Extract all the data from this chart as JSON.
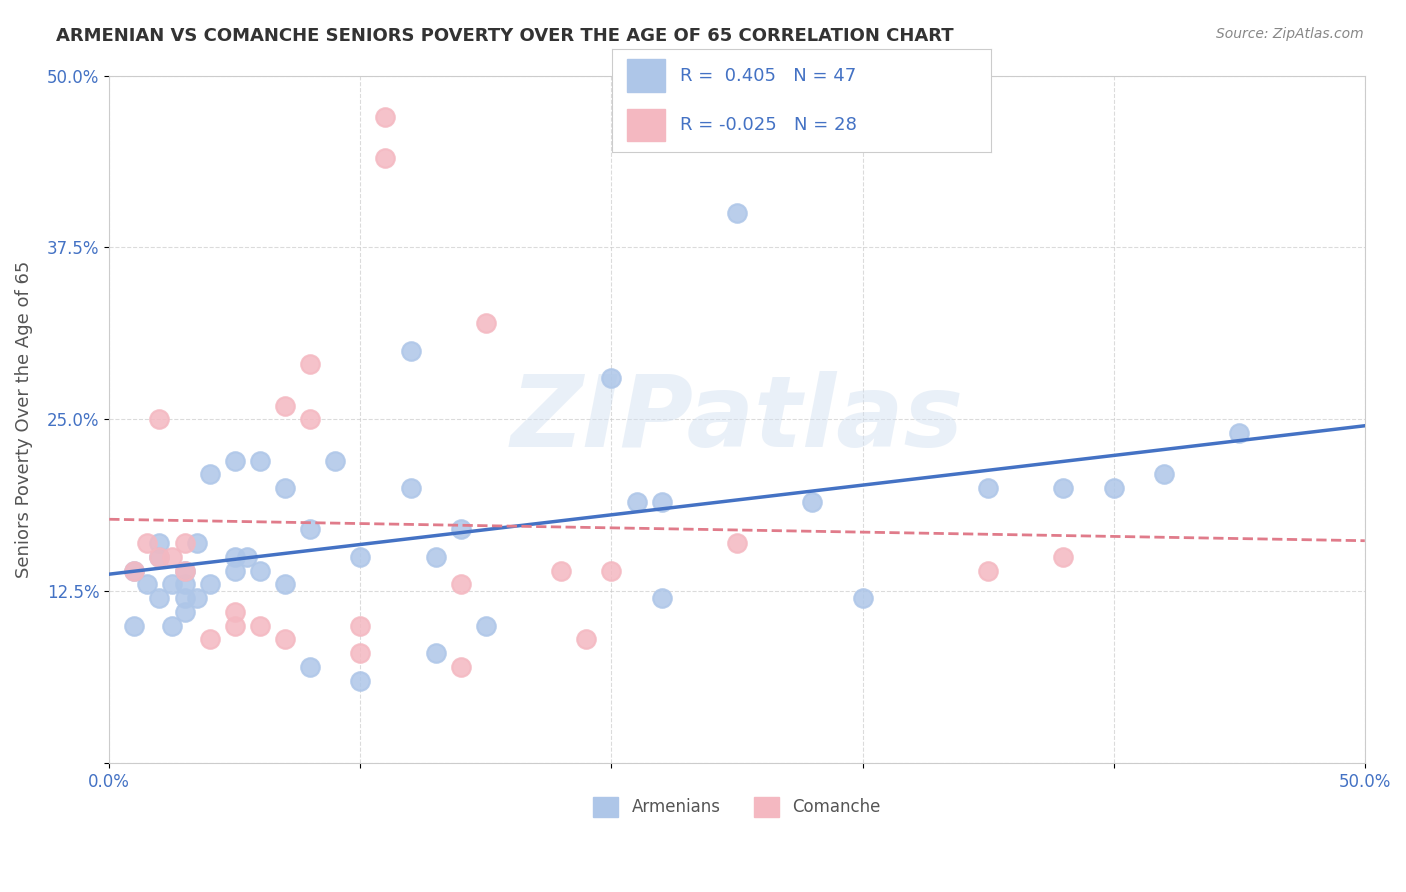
{
  "title": "ARMENIAN VS COMANCHE SENIORS POVERTY OVER THE AGE OF 65 CORRELATION CHART",
  "source": "Source: ZipAtlas.com",
  "ylabel": "Seniors Poverty Over the Age of 65",
  "xlabel": "",
  "xlim": [
    0.0,
    0.5
  ],
  "ylim": [
    0.0,
    0.5
  ],
  "xticks": [
    0.0,
    0.1,
    0.2,
    0.3,
    0.4,
    0.5
  ],
  "yticks": [
    0.0,
    0.125,
    0.25,
    0.375,
    0.5
  ],
  "xticklabels": [
    "0.0%",
    "",
    "",
    "",
    "",
    "50.0%"
  ],
  "yticklabels": [
    "",
    "12.5%",
    "25.0%",
    "37.5%",
    "50.0%"
  ],
  "grid_color": "#cccccc",
  "background_color": "#ffffff",
  "armenians_color": "#aec6e8",
  "comanche_color": "#f4b8c1",
  "armenians_line_color": "#4472c4",
  "comanche_line_color": "#e07b8a",
  "R_armenians": 0.405,
  "N_armenians": 47,
  "R_comanche": -0.025,
  "N_comanche": 28,
  "legend_label_armenians": "Armenians",
  "legend_label_comanche": "Comanche",
  "watermark": "ZIPatlas",
  "armenians_x": [
    0.01,
    0.01,
    0.015,
    0.02,
    0.02,
    0.02,
    0.025,
    0.025,
    0.03,
    0.03,
    0.03,
    0.03,
    0.035,
    0.035,
    0.04,
    0.04,
    0.05,
    0.05,
    0.05,
    0.055,
    0.06,
    0.06,
    0.07,
    0.07,
    0.08,
    0.08,
    0.09,
    0.1,
    0.1,
    0.12,
    0.12,
    0.13,
    0.13,
    0.14,
    0.15,
    0.2,
    0.21,
    0.22,
    0.22,
    0.25,
    0.28,
    0.3,
    0.35,
    0.38,
    0.4,
    0.42,
    0.45
  ],
  "armenians_y": [
    0.1,
    0.14,
    0.13,
    0.12,
    0.15,
    0.16,
    0.1,
    0.13,
    0.11,
    0.12,
    0.13,
    0.14,
    0.12,
    0.16,
    0.13,
    0.21,
    0.14,
    0.15,
    0.22,
    0.15,
    0.14,
    0.22,
    0.13,
    0.2,
    0.07,
    0.17,
    0.22,
    0.06,
    0.15,
    0.2,
    0.3,
    0.15,
    0.08,
    0.17,
    0.1,
    0.28,
    0.19,
    0.19,
    0.12,
    0.4,
    0.19,
    0.12,
    0.2,
    0.2,
    0.2,
    0.21,
    0.24
  ],
  "comanche_x": [
    0.01,
    0.015,
    0.02,
    0.02,
    0.025,
    0.03,
    0.03,
    0.04,
    0.05,
    0.05,
    0.06,
    0.07,
    0.07,
    0.08,
    0.08,
    0.1,
    0.1,
    0.11,
    0.11,
    0.14,
    0.14,
    0.15,
    0.18,
    0.19,
    0.2,
    0.25,
    0.35,
    0.38
  ],
  "comanche_y": [
    0.14,
    0.16,
    0.15,
    0.25,
    0.15,
    0.14,
    0.16,
    0.09,
    0.1,
    0.11,
    0.1,
    0.09,
    0.26,
    0.25,
    0.29,
    0.1,
    0.08,
    0.44,
    0.47,
    0.13,
    0.07,
    0.32,
    0.14,
    0.09,
    0.14,
    0.16,
    0.14,
    0.15
  ]
}
